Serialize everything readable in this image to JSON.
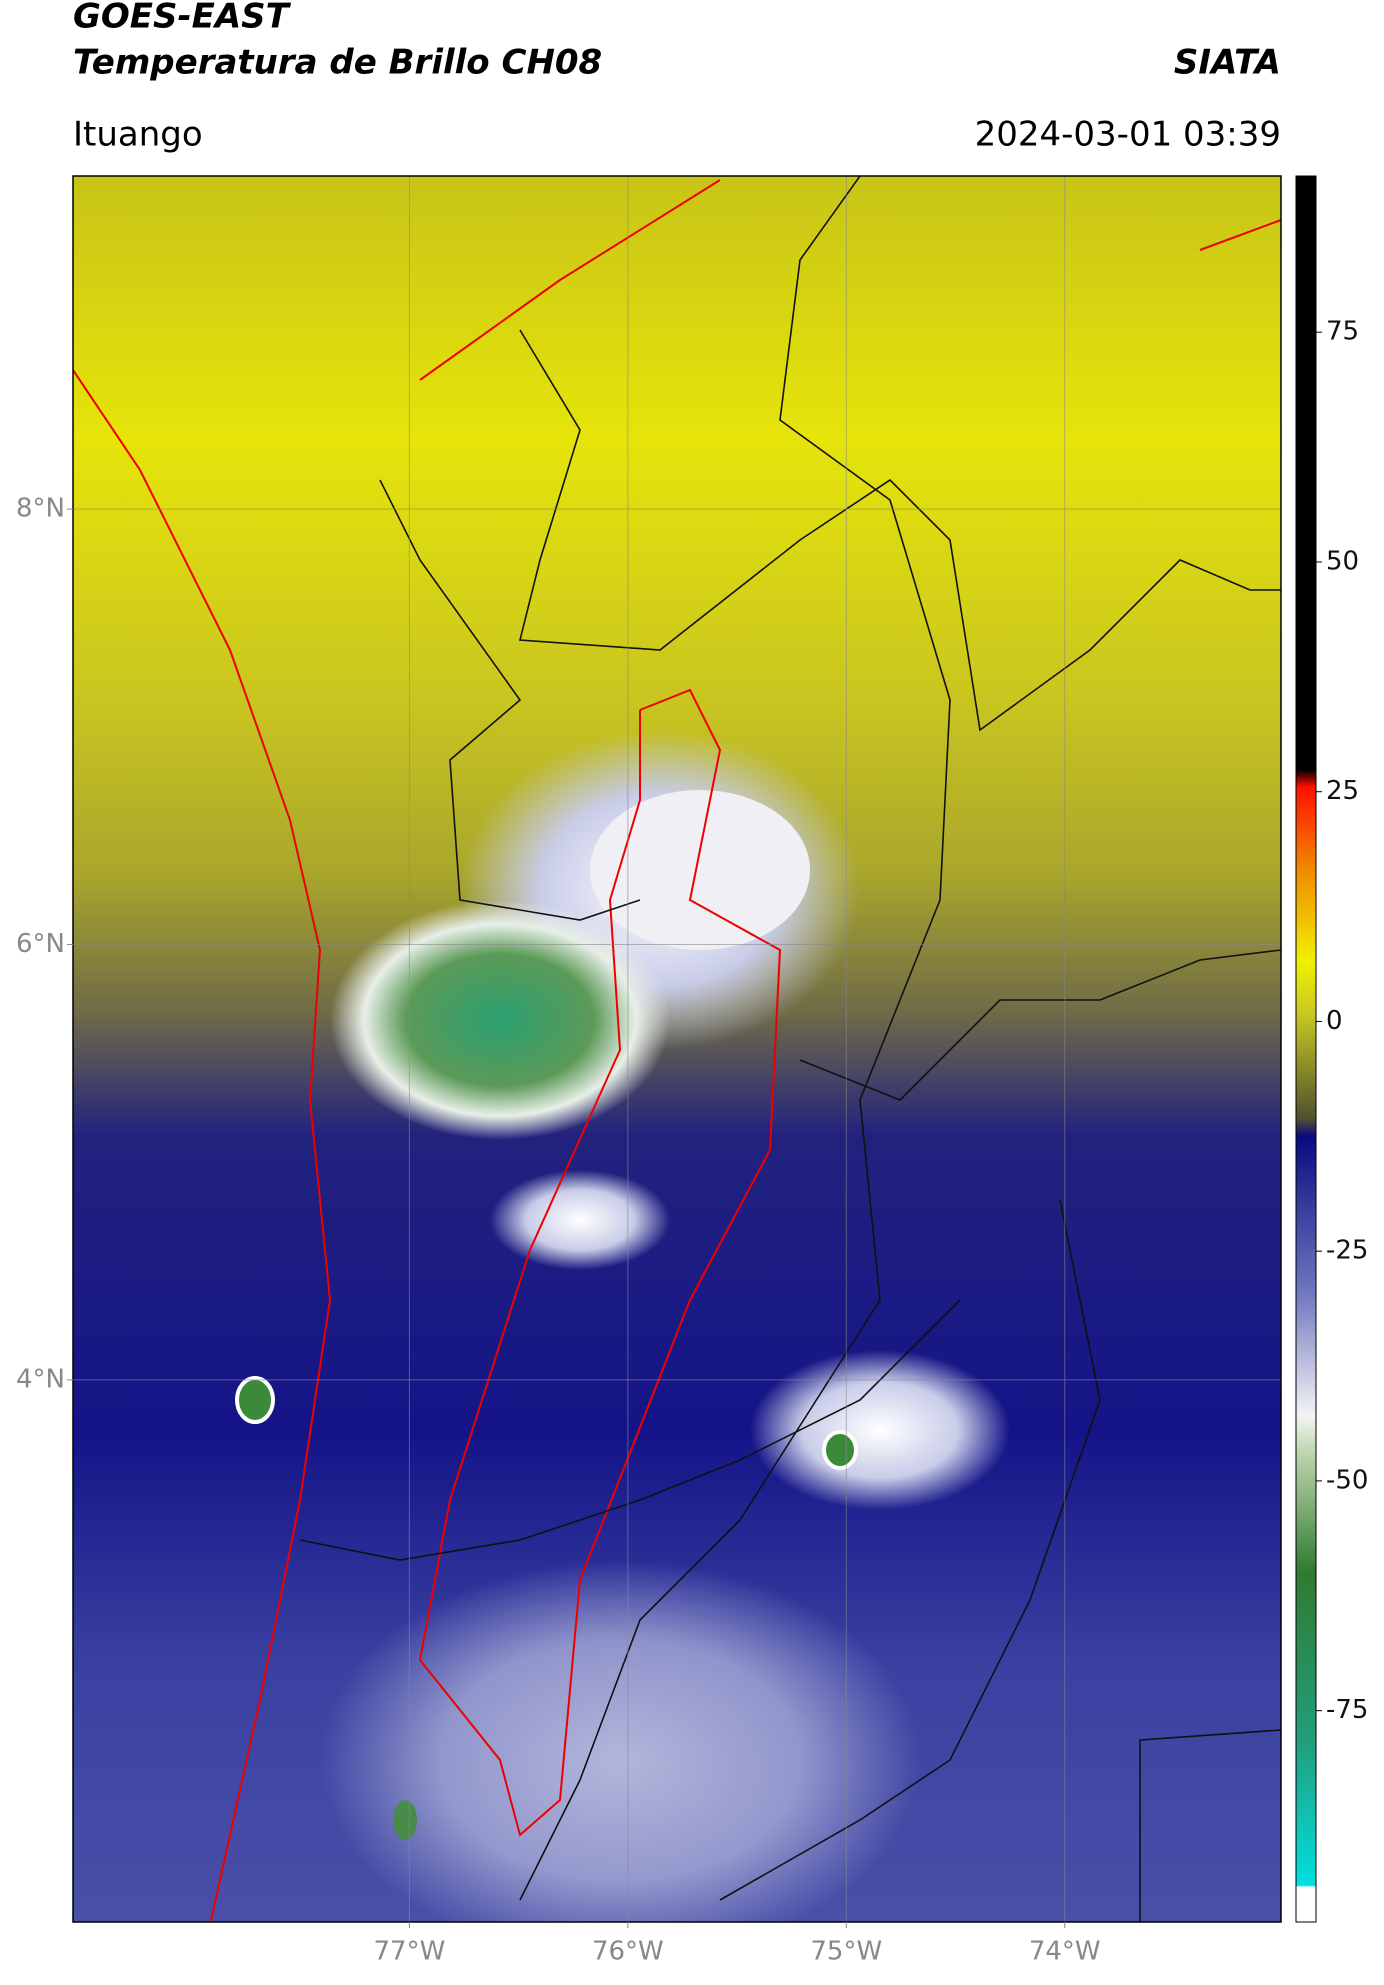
{
  "header": {
    "title": "GOES-EAST",
    "subtitle": "Temperatura de Brillo CH08",
    "brand": "SIATA",
    "location": "Ituango",
    "datetime": "2024-03-01 03:39"
  },
  "map": {
    "latlim": [
      1.51,
      9.53
    ],
    "lonlim": [
      -78.54,
      -73.01
    ],
    "latticks": [
      {
        "value": 8,
        "label": "8°N"
      },
      {
        "value": 6,
        "label": "6°N"
      },
      {
        "value": 4,
        "label": "4°N"
      }
    ],
    "lonticks": [
      {
        "value": -77,
        "label": "77°W"
      },
      {
        "value": -76,
        "label": "76°W"
      },
      {
        "value": -75,
        "label": "75°W"
      },
      {
        "value": -74,
        "label": "74°W"
      }
    ],
    "grid": true
  },
  "colorbar": {
    "lim": [
      -98,
      92
    ],
    "ticks": [
      75,
      50,
      25,
      0,
      -25,
      -50,
      -75
    ]
  }
}
